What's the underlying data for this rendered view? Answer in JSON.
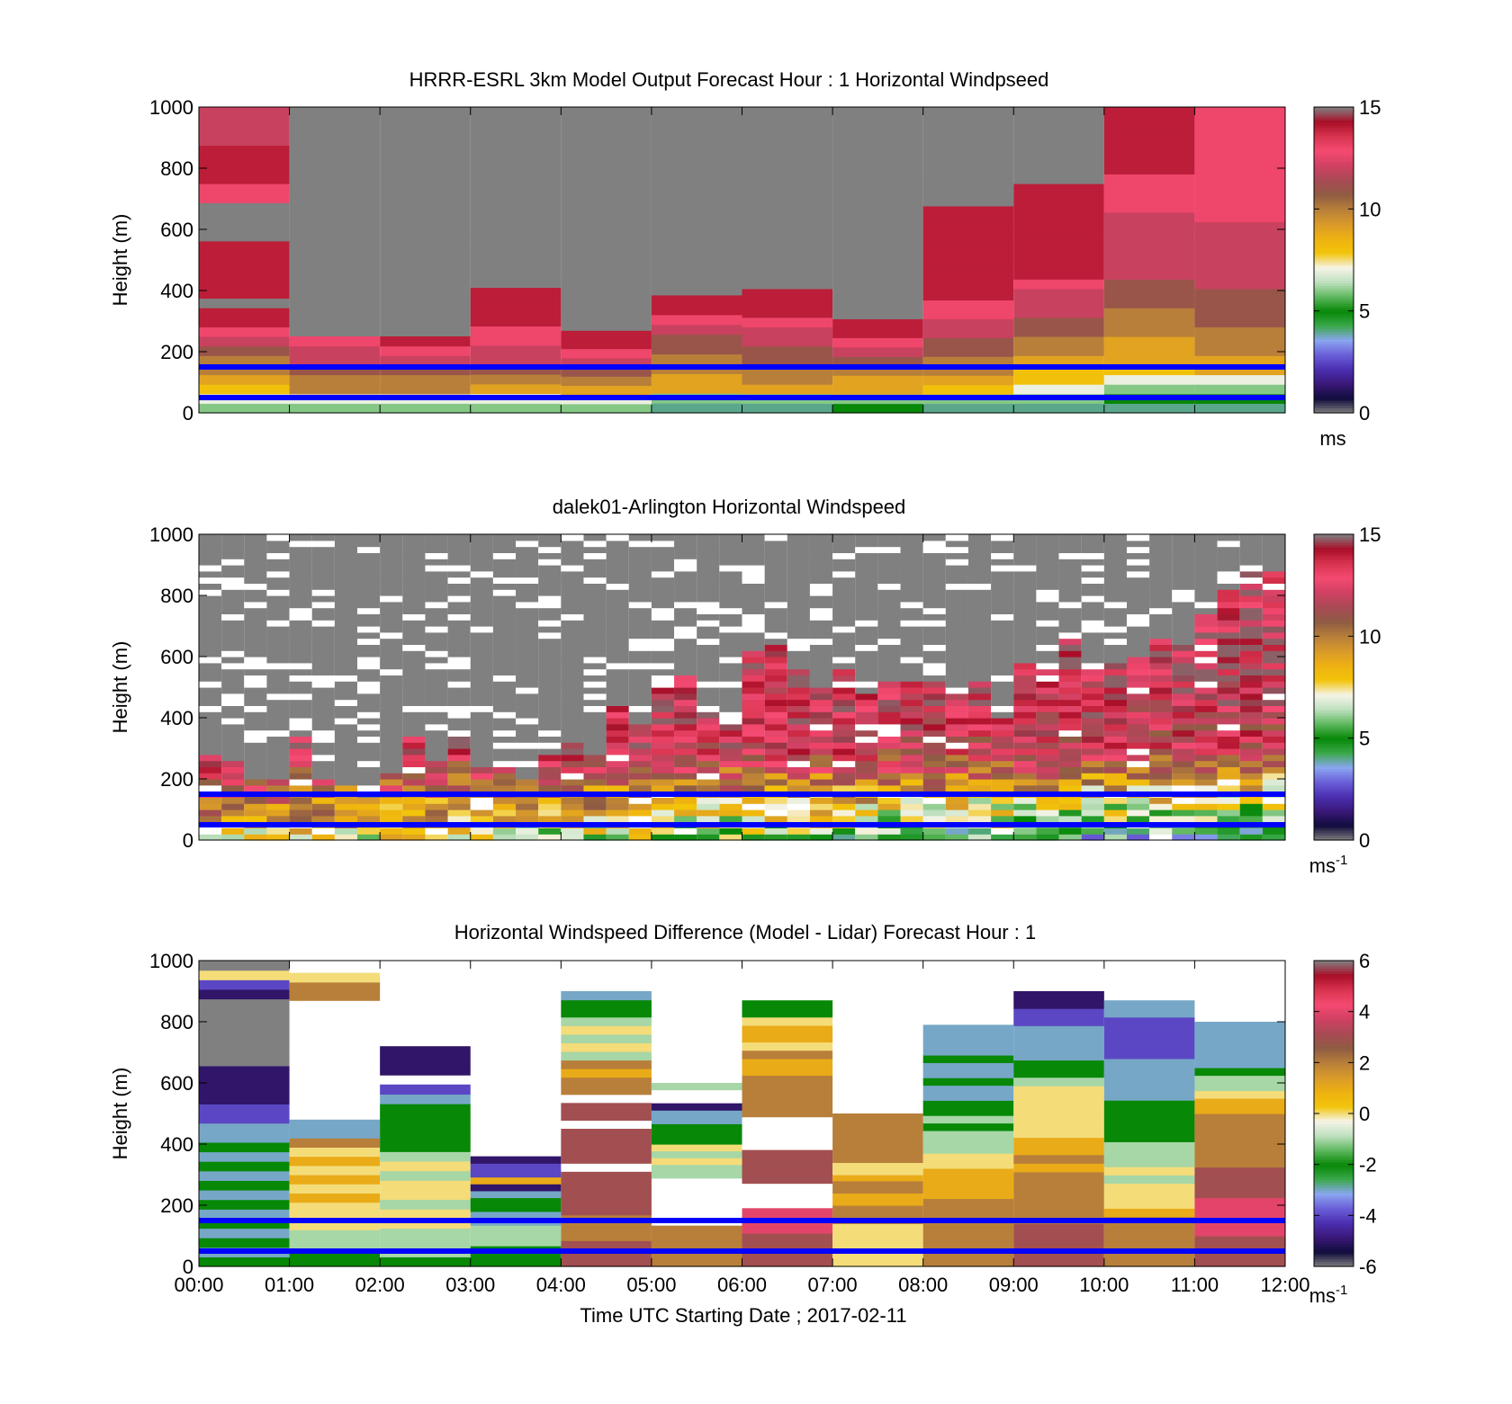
{
  "colors": {
    "nodata": "#808080",
    "ref_line": "#0000ff",
    "speed_scale": [
      "#808080",
      "#100c3c",
      "#3a1878",
      "#4b2fb0",
      "#6a5ed8",
      "#8aa6f0",
      "#3aa84a",
      "#078807",
      "#5fb85f",
      "#bfe0bf",
      "#f6f4e8",
      "#f2c40a",
      "#eeb111",
      "#d89a2a",
      "#b87f3a",
      "#8f5c43",
      "#a84a55",
      "#d04062",
      "#f54a72",
      "#d8344f",
      "#aa0e28",
      "#808080"
    ],
    "diff_scale": [
      "#808080",
      "#100c3c",
      "#3a1878",
      "#4b2fb0",
      "#6a5ed8",
      "#8aa6f0",
      "#3aa84a",
      "#078807",
      "#5fb85f",
      "#bfe0bf",
      "#f6f4e8",
      "#f2c40a",
      "#eeb111",
      "#d89a2a",
      "#b87f3a",
      "#8f5c43",
      "#a84a55",
      "#d04062",
      "#f54a72",
      "#d8344f",
      "#aa0e28",
      "#808080"
    ]
  },
  "chart_data": [
    {
      "type": "heatmap",
      "title": "HRRR-ESRL 3km Model Output   Forecast Hour : 1 Horizontal Windpseed",
      "ylabel": "Height (m)",
      "ylim": [
        0,
        1000
      ],
      "yticks": [
        0,
        200,
        400,
        600,
        800,
        1000
      ],
      "xlim": [
        0,
        12
      ],
      "x_tick_labels": [],
      "colorbar": {
        "min": 0,
        "max": 15,
        "ticks": [
          0,
          5,
          10,
          15
        ],
        "unit": "ms",
        "unit_superscript": ""
      },
      "reference_lines_m": [
        50,
        150
      ],
      "columns": [
        {
          "t0": 0,
          "t1": 1,
          "top": 1000,
          "values": [
            6,
            7,
            8,
            9,
            10,
            10,
            11,
            12,
            13,
            14,
            14,
            15,
            14,
            14,
            14,
            14,
            14,
            14,
            15,
            15,
            15,
            15,
            13,
            13,
            14,
            14,
            14,
            14,
            12,
            12,
            12,
            12
          ]
        },
        {
          "t0": 1,
          "t1": 2,
          "top": 250,
          "values": [
            6,
            7,
            10,
            10,
            11,
            12,
            12,
            13
          ]
        },
        {
          "t0": 2,
          "t1": 3,
          "top": 250,
          "values": [
            6,
            7,
            10,
            10,
            11,
            12,
            13,
            14
          ]
        },
        {
          "t0": 3,
          "t1": 4,
          "top": 600,
          "values": [
            6,
            7,
            9,
            10,
            11,
            12,
            12,
            13,
            13,
            14,
            14,
            14,
            14,
            15,
            15,
            15,
            15,
            15,
            15
          ]
        },
        {
          "t0": 4,
          "t1": 5,
          "top": 300,
          "values": [
            6,
            7,
            9,
            10,
            11,
            12,
            13,
            14,
            14,
            15
          ]
        },
        {
          "t0": 5,
          "t1": 6,
          "top": 450,
          "values": [
            4,
            6,
            9,
            9,
            10,
            10,
            11,
            11,
            12,
            13,
            14,
            14,
            15,
            15
          ]
        },
        {
          "t0": 6,
          "t1": 7,
          "top": 500,
          "values": [
            4,
            6,
            9,
            10,
            10,
            11,
            11,
            12,
            12,
            13,
            14,
            14,
            14,
            15,
            15,
            15
          ]
        },
        {
          "t0": 7,
          "t1": 8,
          "top": 400,
          "values": [
            5,
            6,
            9,
            9,
            10,
            11,
            12,
            13,
            14,
            14,
            15,
            15,
            15
          ]
        },
        {
          "t0": 8,
          "t1": 9,
          "top": 800,
          "values": [
            4,
            6,
            8,
            9,
            10,
            10,
            11,
            11,
            12,
            12,
            13,
            13,
            14,
            14,
            14,
            14,
            14,
            14,
            14,
            14,
            14,
            14,
            15,
            15,
            15,
            15
          ]
        },
        {
          "t0": 9,
          "t1": 10,
          "top": 1000,
          "values": [
            4,
            6,
            7,
            8,
            8,
            9,
            10,
            10,
            11,
            11,
            12,
            12,
            12,
            13,
            14,
            14,
            14,
            14,
            14,
            14,
            14,
            14,
            14,
            14,
            15,
            15,
            15,
            15,
            15,
            15,
            15,
            15
          ]
        },
        {
          "t0": 10,
          "t1": 11,
          "top": 1000,
          "values": [
            4,
            5,
            6,
            7,
            8,
            9,
            9,
            9,
            10,
            10,
            10,
            11,
            11,
            11,
            12,
            12,
            12,
            12,
            12,
            12,
            12,
            13,
            13,
            13,
            13,
            14,
            14,
            14,
            14,
            14,
            14,
            14
          ]
        },
        {
          "t0": 11,
          "t1": 12,
          "top": 1000,
          "values": [
            4,
            5,
            6,
            7,
            9,
            9,
            10,
            10,
            10,
            11,
            11,
            11,
            11,
            12,
            12,
            12,
            12,
            12,
            12,
            12,
            13,
            13,
            13,
            13,
            13,
            13,
            13,
            13,
            13,
            13,
            13,
            13
          ]
        }
      ]
    },
    {
      "type": "heatmap",
      "title": "dalek01-Arlington  Horizontal Windspeed",
      "ylabel": "Height (m)",
      "ylim": [
        0,
        1000
      ],
      "yticks": [
        0,
        200,
        400,
        600,
        800,
        1000
      ],
      "xlim": [
        0,
        12
      ],
      "x_tick_labels": [],
      "colorbar": {
        "min": 0,
        "max": 15,
        "ticks": [
          0,
          5,
          10,
          15
        ],
        "unit": "ms",
        "unit_superscript": "-1"
      },
      "reference_lines_m": [
        50,
        150
      ],
      "profiles": {
        "n_time": 48,
        "dz": 20,
        "data_top": [
          270,
          250,
          200,
          200,
          330,
          190,
          170,
          140,
          210,
          330,
          260,
          330,
          240,
          240,
          190,
          270,
          310,
          280,
          440,
          380,
          490,
          530,
          420,
          380,
          610,
          640,
          560,
          500,
          560,
          480,
          520,
          510,
          510,
          470,
          520,
          400,
          580,
          560,
          650,
          550,
          570,
          590,
          660,
          640,
          740,
          820,
          880,
          870
        ]
      }
    },
    {
      "type": "heatmap",
      "title": "Horizontal Windspeed Difference (Model - Lidar) Forecast Hour : 1",
      "xlabel": "Time UTC  Starting Date ; 2017-02-11",
      "ylabel": "Height (m)",
      "ylim": [
        0,
        1000
      ],
      "yticks": [
        0,
        200,
        400,
        600,
        800,
        1000
      ],
      "xlim": [
        0,
        12
      ],
      "x_tick_labels": [
        "00:00",
        "01:00",
        "02:00",
        "03:00",
        "04:00",
        "05:00",
        "06:00",
        "07:00",
        "08:00",
        "09:00",
        "10:00",
        "11:00",
        "12:00"
      ],
      "colorbar": {
        "min": -6,
        "max": 6,
        "ticks": [
          -6,
          -4,
          -2,
          0,
          2,
          4,
          6
        ],
        "unit": "ms",
        "unit_superscript": "-1"
      },
      "reference_lines_m": [
        50,
        150
      ],
      "columns": [
        {
          "t0": 0,
          "t1": 1,
          "top": 1000,
          "values": [
            -2,
            -3,
            -2,
            -3,
            -2,
            -3,
            -2,
            -3,
            -2,
            -3,
            -2,
            -3,
            -2,
            -3,
            -3,
            -4,
            -4,
            -5,
            -5,
            -5,
            -5,
            -6,
            -6,
            -6,
            -6,
            -6,
            -6,
            -6,
            -5,
            -4,
            0,
            -6
          ]
        },
        {
          "t0": 1,
          "t1": 2,
          "top": 960,
          "values": [
            -2,
            -2,
            -1,
            -1,
            0,
            0,
            0,
            1,
            0,
            1,
            0,
            1,
            0,
            2,
            -3,
            -3,
            null,
            null,
            null,
            null,
            null,
            null,
            null,
            null,
            null,
            null,
            null,
            null,
            null,
            2,
            2,
            0
          ]
        },
        {
          "t0": 2,
          "t1": 3,
          "top": 720,
          "values": [
            -2,
            -1,
            -1,
            -1,
            0,
            0,
            -1,
            0,
            0,
            -1,
            0,
            -1,
            -2,
            -2,
            -2,
            -2,
            -2,
            -3,
            -4,
            null,
            -5,
            -5,
            -5
          ]
        },
        {
          "t0": 3,
          "t1": 4,
          "top": 360,
          "values": [
            -2,
            -2,
            -2,
            -1,
            -1,
            -1,
            -3,
            -3,
            -2,
            -2,
            -3,
            -5,
            1,
            -4,
            -4,
            -5
          ]
        },
        {
          "t0": 4,
          "t1": 5,
          "top": 900,
          "values": [
            3,
            3,
            3,
            2,
            2,
            2,
            3,
            3,
            3,
            3,
            3,
            null,
            3,
            3,
            3,
            3,
            null,
            3,
            3,
            null,
            2,
            2,
            1,
            2,
            -1,
            0,
            -1,
            0,
            -1,
            -2,
            -2,
            -3
          ]
        },
        {
          "t0": 5,
          "t1": 6,
          "top": 600,
          "values": [
            2,
            2,
            2,
            2,
            2,
            2,
            null,
            null,
            null,
            null,
            null,
            null,
            null,
            -1,
            -1,
            0,
            -1,
            0,
            -2,
            -2,
            -2,
            -3,
            -3,
            -5,
            null,
            null,
            -1
          ]
        },
        {
          "t0": 6,
          "t1": 7,
          "top": 870,
          "values": [
            3,
            3,
            3,
            3,
            4,
            4,
            4,
            null,
            null,
            null,
            3,
            3,
            3,
            3,
            null,
            null,
            null,
            null,
            2,
            2,
            2,
            2,
            2,
            1,
            1,
            2,
            0,
            1,
            1,
            0,
            -2,
            -2
          ]
        },
        {
          "t0": 7,
          "t1": 8,
          "top": 500,
          "values": [
            0,
            0,
            0,
            0,
            0,
            0,
            0,
            2,
            2,
            2,
            1,
            1,
            2,
            2,
            1,
            0,
            0,
            2,
            2,
            2,
            2,
            2,
            2,
            2,
            2
          ]
        },
        {
          "t0": 8,
          "t1": 9,
          "top": 790,
          "values": [
            2,
            2,
            2,
            2,
            2,
            2,
            2,
            2,
            2,
            1,
            1,
            1,
            1,
            0,
            0,
            -1,
            -1,
            -1,
            -2,
            -1,
            -2,
            -2,
            -3,
            -3,
            -2,
            -3,
            -3,
            -2,
            -3,
            -3,
            -3,
            -3
          ]
        },
        {
          "t0": 9,
          "t1": 10,
          "top": 900,
          "values": [
            3,
            3,
            3,
            3,
            3,
            2,
            2,
            2,
            2,
            2,
            2,
            1,
            2,
            1,
            1,
            0,
            0,
            0,
            0,
            0,
            0,
            -1,
            -2,
            -2,
            -3,
            -3,
            -3,
            -3,
            -4,
            -4,
            -5,
            -5
          ]
        },
        {
          "t0": 10,
          "t1": 11,
          "top": 870,
          "values": [
            2,
            2,
            2,
            2,
            2,
            2,
            1,
            0,
            0,
            0,
            -1,
            0,
            -1,
            -1,
            -1,
            -2,
            -2,
            -2,
            -2,
            -2,
            -3,
            -3,
            -3,
            -3,
            -3,
            -4,
            -4,
            -4,
            -4,
            -4,
            -3,
            -3
          ]
        },
        {
          "t0": 11,
          "t1": 12,
          "top": 800,
          "values": [
            3,
            3,
            3,
            3,
            4,
            4,
            4,
            4,
            4,
            3,
            3,
            3,
            3,
            2,
            2,
            2,
            2,
            2,
            2,
            2,
            1,
            1,
            0,
            -1,
            -1,
            -2,
            -3,
            -3,
            -3,
            -3,
            -3,
            -3
          ]
        }
      ]
    }
  ]
}
